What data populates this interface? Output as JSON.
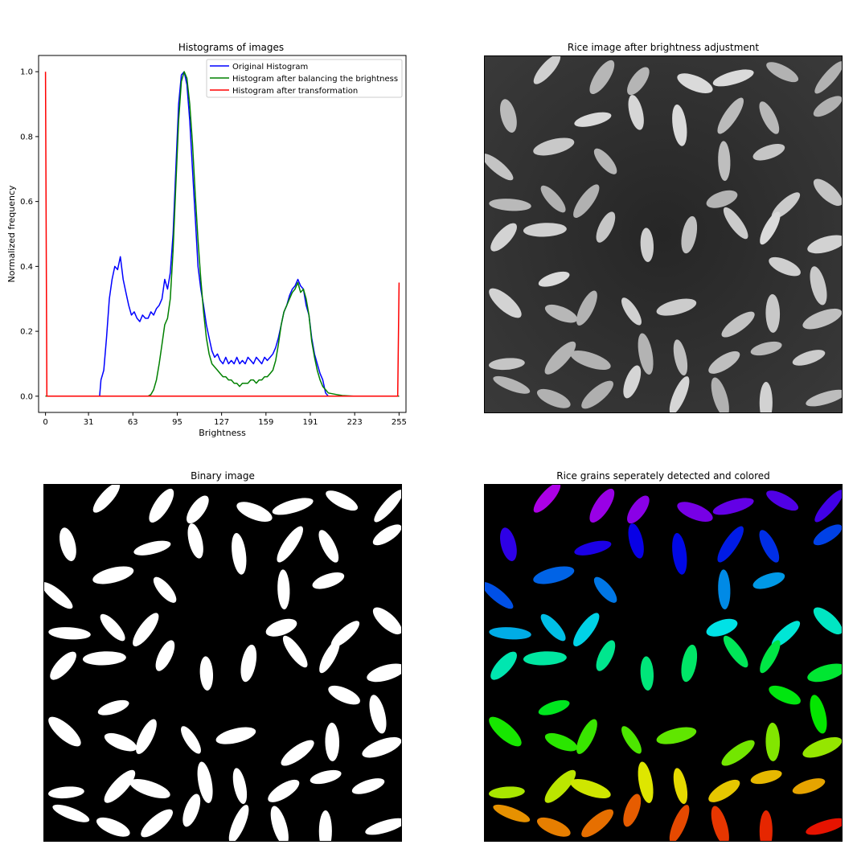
{
  "chart_data": [
    {
      "type": "line",
      "title": "Histograms of images",
      "xlabel": "Brightness",
      "ylabel": "Normalized frequency",
      "xlim": [
        -5,
        260
      ],
      "ylim": [
        -0.05,
        1.05
      ],
      "xticks": [
        0,
        31,
        63,
        95,
        127,
        159,
        191,
        223,
        255
      ],
      "yticks": [
        0.0,
        0.2,
        0.4,
        0.6,
        0.8,
        1.0
      ],
      "ytick_labels": [
        "0.0",
        "0.2",
        "0.4",
        "0.6",
        "0.8",
        "1.0"
      ],
      "legend_position": "top-right",
      "series": [
        {
          "name": "Original Histogram",
          "color": "#0000ff",
          "points": [
            [
              0,
              0
            ],
            [
              39,
              0
            ],
            [
              40,
              0.05
            ],
            [
              42,
              0.08
            ],
            [
              44,
              0.18
            ],
            [
              46,
              0.3
            ],
            [
              48,
              0.36
            ],
            [
              50,
              0.4
            ],
            [
              52,
              0.39
            ],
            [
              54,
              0.43
            ],
            [
              56,
              0.36
            ],
            [
              58,
              0.32
            ],
            [
              60,
              0.28
            ],
            [
              62,
              0.25
            ],
            [
              64,
              0.26
            ],
            [
              66,
              0.24
            ],
            [
              68,
              0.23
            ],
            [
              70,
              0.25
            ],
            [
              72,
              0.24
            ],
            [
              74,
              0.24
            ],
            [
              76,
              0.26
            ],
            [
              78,
              0.25
            ],
            [
              80,
              0.27
            ],
            [
              82,
              0.28
            ],
            [
              84,
              0.3
            ],
            [
              86,
              0.36
            ],
            [
              88,
              0.33
            ],
            [
              90,
              0.38
            ],
            [
              92,
              0.5
            ],
            [
              94,
              0.7
            ],
            [
              96,
              0.9
            ],
            [
              98,
              0.99
            ],
            [
              100,
              1.0
            ],
            [
              102,
              0.96
            ],
            [
              104,
              0.85
            ],
            [
              106,
              0.7
            ],
            [
              108,
              0.55
            ],
            [
              110,
              0.4
            ],
            [
              112,
              0.33
            ],
            [
              114,
              0.28
            ],
            [
              116,
              0.22
            ],
            [
              118,
              0.18
            ],
            [
              120,
              0.14
            ],
            [
              122,
              0.12
            ],
            [
              124,
              0.13
            ],
            [
              126,
              0.11
            ],
            [
              128,
              0.1
            ],
            [
              130,
              0.12
            ],
            [
              132,
              0.1
            ],
            [
              134,
              0.11
            ],
            [
              136,
              0.1
            ],
            [
              138,
              0.12
            ],
            [
              140,
              0.1
            ],
            [
              142,
              0.11
            ],
            [
              144,
              0.1
            ],
            [
              146,
              0.12
            ],
            [
              148,
              0.11
            ],
            [
              150,
              0.1
            ],
            [
              152,
              0.12
            ],
            [
              154,
              0.11
            ],
            [
              156,
              0.1
            ],
            [
              158,
              0.12
            ],
            [
              160,
              0.11
            ],
            [
              162,
              0.12
            ],
            [
              164,
              0.13
            ],
            [
              166,
              0.15
            ],
            [
              168,
              0.18
            ],
            [
              170,
              0.22
            ],
            [
              172,
              0.26
            ],
            [
              174,
              0.28
            ],
            [
              176,
              0.31
            ],
            [
              178,
              0.33
            ],
            [
              180,
              0.34
            ],
            [
              182,
              0.36
            ],
            [
              184,
              0.34
            ],
            [
              186,
              0.33
            ],
            [
              188,
              0.28
            ],
            [
              190,
              0.25
            ],
            [
              192,
              0.18
            ],
            [
              194,
              0.13
            ],
            [
              196,
              0.1
            ],
            [
              198,
              0.07
            ],
            [
              200,
              0.05
            ],
            [
              202,
              0.01
            ],
            [
              204,
              0.0
            ],
            [
              255,
              0.0
            ]
          ]
        },
        {
          "name": "Histogram after balancing the brightness",
          "color": "#008000",
          "points": [
            [
              0,
              0
            ],
            [
              74,
              0
            ],
            [
              76,
              0.005
            ],
            [
              78,
              0.02
            ],
            [
              80,
              0.05
            ],
            [
              82,
              0.1
            ],
            [
              84,
              0.16
            ],
            [
              86,
              0.22
            ],
            [
              88,
              0.24
            ],
            [
              90,
              0.3
            ],
            [
              92,
              0.45
            ],
            [
              94,
              0.65
            ],
            [
              96,
              0.85
            ],
            [
              98,
              0.97
            ],
            [
              100,
              1.0
            ],
            [
              102,
              0.98
            ],
            [
              104,
              0.9
            ],
            [
              106,
              0.78
            ],
            [
              108,
              0.62
            ],
            [
              110,
              0.48
            ],
            [
              112,
              0.36
            ],
            [
              114,
              0.26
            ],
            [
              116,
              0.18
            ],
            [
              118,
              0.13
            ],
            [
              120,
              0.1
            ],
            [
              122,
              0.09
            ],
            [
              124,
              0.08
            ],
            [
              126,
              0.07
            ],
            [
              128,
              0.06
            ],
            [
              130,
              0.06
            ],
            [
              132,
              0.05
            ],
            [
              134,
              0.05
            ],
            [
              136,
              0.04
            ],
            [
              138,
              0.04
            ],
            [
              140,
              0.03
            ],
            [
              142,
              0.04
            ],
            [
              144,
              0.04
            ],
            [
              146,
              0.04
            ],
            [
              148,
              0.05
            ],
            [
              150,
              0.05
            ],
            [
              152,
              0.04
            ],
            [
              154,
              0.05
            ],
            [
              156,
              0.05
            ],
            [
              158,
              0.06
            ],
            [
              160,
              0.06
            ],
            [
              162,
              0.07
            ],
            [
              164,
              0.08
            ],
            [
              166,
              0.11
            ],
            [
              168,
              0.16
            ],
            [
              170,
              0.22
            ],
            [
              172,
              0.26
            ],
            [
              174,
              0.28
            ],
            [
              176,
              0.3
            ],
            [
              178,
              0.32
            ],
            [
              180,
              0.33
            ],
            [
              182,
              0.35
            ],
            [
              184,
              0.32
            ],
            [
              186,
              0.33
            ],
            [
              188,
              0.3
            ],
            [
              190,
              0.25
            ],
            [
              192,
              0.17
            ],
            [
              194,
              0.12
            ],
            [
              196,
              0.08
            ],
            [
              198,
              0.05
            ],
            [
              200,
              0.03
            ],
            [
              202,
              0.02
            ],
            [
              204,
              0.01
            ],
            [
              210,
              0.005
            ],
            [
              214,
              0.002
            ],
            [
              218,
              0.001
            ],
            [
              222,
              0.0
            ],
            [
              255,
              0.0
            ]
          ]
        },
        {
          "name": "Histogram after transformation",
          "color": "#ff0000",
          "points": [
            [
              0,
              1.0
            ],
            [
              1,
              0.0
            ],
            [
              254,
              0.0
            ],
            [
              255,
              0.35
            ]
          ]
        }
      ]
    },
    {
      "type": "image",
      "title": "Rice image after brightness adjustment",
      "colormap": "grayscale"
    },
    {
      "type": "image",
      "title": "Binary image",
      "colormap": "black-white"
    },
    {
      "type": "image",
      "title": "Rice grains seperately detected and colored",
      "colormap": "hue-per-label"
    }
  ]
}
